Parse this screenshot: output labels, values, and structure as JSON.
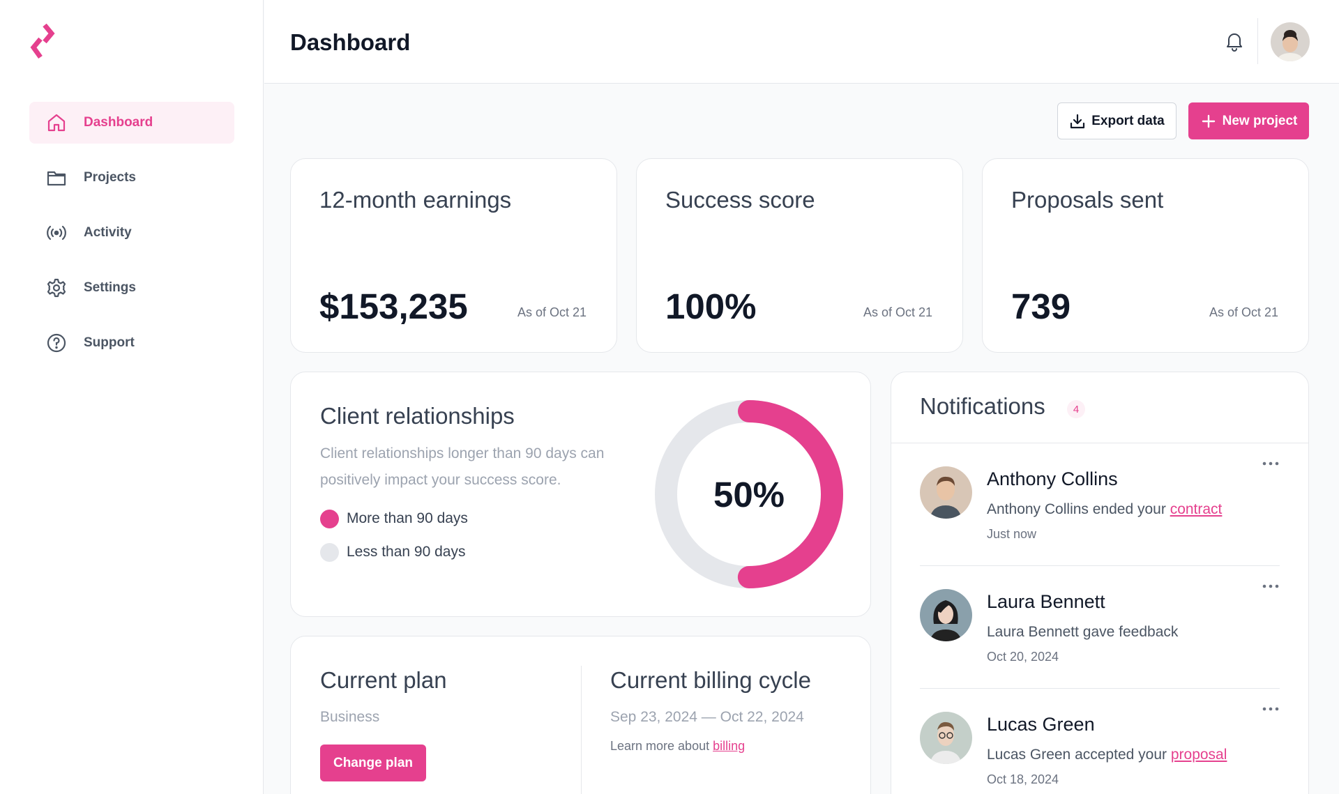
{
  "sidebar": {
    "logo_icon": "brand-logo-icon",
    "items": [
      {
        "label": "Dashboard",
        "icon": "home-icon",
        "active": true
      },
      {
        "label": "Projects",
        "icon": "folder-icon",
        "active": false
      },
      {
        "label": "Activity",
        "icon": "broadcast-icon",
        "active": false
      },
      {
        "label": "Settings",
        "icon": "gear-icon",
        "active": false
      },
      {
        "label": "Support",
        "icon": "help-circle-icon",
        "active": false
      }
    ]
  },
  "header": {
    "title": "Dashboard",
    "bell_icon": "bell-icon"
  },
  "toolbar": {
    "export_label": "Export data",
    "new_project_label": "New project"
  },
  "stats": [
    {
      "title": "12-month earnings",
      "value": "$153,235",
      "note": "As of Oct 21"
    },
    {
      "title": "Success score",
      "value": "100%",
      "note": "As of Oct 21"
    },
    {
      "title": "Proposals sent",
      "value": "739",
      "note": "As of Oct 21"
    }
  ],
  "client_relationships": {
    "title": "Client relationships",
    "description": "Client relationships longer than 90 days can positively impact your success score.",
    "legend": [
      {
        "label": "More than 90 days",
        "color": "#e5408e"
      },
      {
        "label": "Less than 90 days",
        "color": "#e5e7eb"
      }
    ],
    "percent_label": "50%",
    "percent_value": 50
  },
  "plan": {
    "title": "Current plan",
    "name": "Business",
    "change_label": "Change plan",
    "billing_title": "Current billing cycle",
    "billing_range": "Sep 23, 2024 — Oct 22, 2024",
    "learn_prefix": "Learn more about",
    "learn_link": "billing"
  },
  "notifications": {
    "title": "Notifications",
    "count": "4",
    "items": [
      {
        "name": "Anthony Collins",
        "text": "Anthony Collins ended your",
        "link": "contract",
        "time": "Just now"
      },
      {
        "name": "Laura Bennett",
        "text": "Laura Bennett gave feedback",
        "link": "",
        "time": "Oct 20, 2024"
      },
      {
        "name": "Lucas Green",
        "text": "Lucas Green accepted your",
        "link": "proposal",
        "time": "Oct 18, 2024"
      }
    ]
  },
  "colors": {
    "accent": "#e5408e",
    "accent_bg": "#fdf0f6",
    "track": "#e5e7eb"
  }
}
